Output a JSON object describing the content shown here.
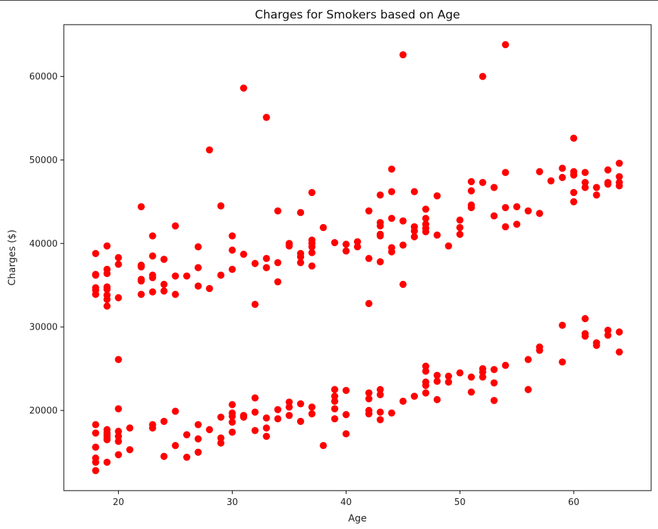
{
  "chart_data": {
    "type": "scatter",
    "title": "Charges for Smokers based on Age",
    "xlabel": "Age",
    "ylabel": "Charges ($)",
    "xlim": [
      15.2,
      66.8
    ],
    "ylim": [
      10400,
      66200
    ],
    "xticks": [
      20,
      30,
      40,
      50,
      60
    ],
    "yticks": [
      20000,
      30000,
      40000,
      50000,
      60000
    ],
    "grid": false,
    "marker_color": "#ff0000",
    "series": [
      {
        "points": [
          [
            18,
            38800
          ],
          [
            18,
            36300
          ],
          [
            18,
            36200
          ],
          [
            18,
            34700
          ],
          [
            18,
            34400
          ],
          [
            18,
            33900
          ],
          [
            19,
            39700
          ],
          [
            19,
            36900
          ],
          [
            19,
            36400
          ],
          [
            19,
            34800
          ],
          [
            19,
            34500
          ],
          [
            19,
            33800
          ],
          [
            19,
            33300
          ],
          [
            19,
            32500
          ],
          [
            20,
            38300
          ],
          [
            20,
            37500
          ],
          [
            20,
            33500
          ],
          [
            22,
            44400
          ],
          [
            22,
            37400
          ],
          [
            22,
            37200
          ],
          [
            22,
            35700
          ],
          [
            22,
            35500
          ],
          [
            22,
            33900
          ],
          [
            23,
            40900
          ],
          [
            23,
            38500
          ],
          [
            23,
            36200
          ],
          [
            23,
            35900
          ],
          [
            23,
            34200
          ],
          [
            24,
            38100
          ],
          [
            24,
            35100
          ],
          [
            24,
            34300
          ],
          [
            25,
            42100
          ],
          [
            25,
            36100
          ],
          [
            25,
            33900
          ],
          [
            26,
            36100
          ],
          [
            27,
            39600
          ],
          [
            27,
            37100
          ],
          [
            27,
            34900
          ],
          [
            28,
            51200
          ],
          [
            28,
            34600
          ],
          [
            29,
            44500
          ],
          [
            29,
            36200
          ],
          [
            30,
            40900
          ],
          [
            30,
            39200
          ],
          [
            30,
            36900
          ],
          [
            31,
            58600
          ],
          [
            31,
            38700
          ],
          [
            32,
            37600
          ],
          [
            32,
            32700
          ],
          [
            33,
            55100
          ],
          [
            33,
            38200
          ],
          [
            33,
            37100
          ],
          [
            34,
            43900
          ],
          [
            34,
            37700
          ],
          [
            34,
            35400
          ],
          [
            35,
            40000
          ],
          [
            35,
            39700
          ],
          [
            36,
            43700
          ],
          [
            36,
            38800
          ],
          [
            36,
            38400
          ],
          [
            36,
            37700
          ],
          [
            37,
            46100
          ],
          [
            37,
            40400
          ],
          [
            37,
            40000
          ],
          [
            37,
            39600
          ],
          [
            37,
            38900
          ],
          [
            37,
            37300
          ],
          [
            38,
            41900
          ],
          [
            39,
            40100
          ],
          [
            40,
            39900
          ],
          [
            40,
            39100
          ],
          [
            41,
            40200
          ],
          [
            41,
            39600
          ],
          [
            42,
            43900
          ],
          [
            42,
            38200
          ],
          [
            42,
            32800
          ],
          [
            43,
            45800
          ],
          [
            43,
            42500
          ],
          [
            43,
            42100
          ],
          [
            43,
            41100
          ],
          [
            43,
            40900
          ],
          [
            43,
            37800
          ],
          [
            44,
            48900
          ],
          [
            44,
            46200
          ],
          [
            44,
            43000
          ],
          [
            44,
            39500
          ],
          [
            44,
            39000
          ],
          [
            45,
            62600
          ],
          [
            45,
            42700
          ],
          [
            45,
            39800
          ],
          [
            45,
            35100
          ],
          [
            46,
            46200
          ],
          [
            46,
            42000
          ],
          [
            46,
            41500
          ],
          [
            46,
            40800
          ],
          [
            47,
            44100
          ],
          [
            47,
            43000
          ],
          [
            47,
            42300
          ],
          [
            47,
            41800
          ],
          [
            47,
            41400
          ],
          [
            48,
            45700
          ],
          [
            48,
            41000
          ],
          [
            49,
            39700
          ],
          [
            50,
            42800
          ],
          [
            50,
            41900
          ],
          [
            50,
            41100
          ],
          [
            51,
            47400
          ],
          [
            51,
            46300
          ],
          [
            51,
            44600
          ],
          [
            51,
            44300
          ],
          [
            52,
            60000
          ],
          [
            52,
            47300
          ],
          [
            53,
            46700
          ],
          [
            53,
            43300
          ],
          [
            54,
            63800
          ],
          [
            54,
            48500
          ],
          [
            54,
            44300
          ],
          [
            54,
            42000
          ],
          [
            55,
            44400
          ],
          [
            55,
            42300
          ],
          [
            56,
            43900
          ],
          [
            57,
            48600
          ],
          [
            57,
            43600
          ],
          [
            58,
            47500
          ],
          [
            59,
            49000
          ],
          [
            59,
            47900
          ],
          [
            60,
            52600
          ],
          [
            60,
            48600
          ],
          [
            60,
            48200
          ],
          [
            60,
            46100
          ],
          [
            60,
            45000
          ],
          [
            61,
            48500
          ],
          [
            61,
            47300
          ],
          [
            61,
            46700
          ],
          [
            62,
            46700
          ],
          [
            62,
            45800
          ],
          [
            63,
            48800
          ],
          [
            63,
            47300
          ],
          [
            63,
            47100
          ],
          [
            64,
            49600
          ],
          [
            64,
            48000
          ],
          [
            64,
            47300
          ],
          [
            64,
            46900
          ],
          [
            18,
            18300
          ],
          [
            18,
            17300
          ],
          [
            18,
            15600
          ],
          [
            18,
            14300
          ],
          [
            18,
            13800
          ],
          [
            18,
            12800
          ],
          [
            19,
            17700
          ],
          [
            19,
            17300
          ],
          [
            19,
            17000
          ],
          [
            19,
            16700
          ],
          [
            19,
            16500
          ],
          [
            19,
            13800
          ],
          [
            20,
            26100
          ],
          [
            20,
            20200
          ],
          [
            20,
            17500
          ],
          [
            20,
            16900
          ],
          [
            20,
            16300
          ],
          [
            20,
            14700
          ],
          [
            21,
            17900
          ],
          [
            21,
            15300
          ],
          [
            23,
            18300
          ],
          [
            23,
            17900
          ],
          [
            24,
            18700
          ],
          [
            24,
            14500
          ],
          [
            25,
            19900
          ],
          [
            25,
            15800
          ],
          [
            26,
            17100
          ],
          [
            26,
            14400
          ],
          [
            27,
            18300
          ],
          [
            27,
            16600
          ],
          [
            27,
            15000
          ],
          [
            28,
            17700
          ],
          [
            29,
            19200
          ],
          [
            29,
            16700
          ],
          [
            29,
            16100
          ],
          [
            30,
            20700
          ],
          [
            30,
            19700
          ],
          [
            30,
            19300
          ],
          [
            30,
            18600
          ],
          [
            30,
            17400
          ],
          [
            31,
            19400
          ],
          [
            31,
            19200
          ],
          [
            32,
            21500
          ],
          [
            32,
            19800
          ],
          [
            32,
            17600
          ],
          [
            33,
            19100
          ],
          [
            33,
            17900
          ],
          [
            33,
            16900
          ],
          [
            34,
            20100
          ],
          [
            34,
            19000
          ],
          [
            35,
            21000
          ],
          [
            35,
            20400
          ],
          [
            35,
            19400
          ],
          [
            36,
            20800
          ],
          [
            36,
            18700
          ],
          [
            37,
            20400
          ],
          [
            37,
            19600
          ],
          [
            38,
            15800
          ],
          [
            39,
            22500
          ],
          [
            39,
            21700
          ],
          [
            39,
            21100
          ],
          [
            39,
            20200
          ],
          [
            39,
            19000
          ],
          [
            40,
            22400
          ],
          [
            40,
            19500
          ],
          [
            40,
            17200
          ],
          [
            42,
            22100
          ],
          [
            42,
            21400
          ],
          [
            42,
            20000
          ],
          [
            42,
            19600
          ],
          [
            43,
            22500
          ],
          [
            43,
            21900
          ],
          [
            43,
            19800
          ],
          [
            43,
            18900
          ],
          [
            44,
            19700
          ],
          [
            45,
            21100
          ],
          [
            46,
            21700
          ],
          [
            47,
            25300
          ],
          [
            47,
            24700
          ],
          [
            47,
            23400
          ],
          [
            47,
            23000
          ],
          [
            47,
            22100
          ],
          [
            48,
            24200
          ],
          [
            48,
            23500
          ],
          [
            48,
            21300
          ],
          [
            49,
            24100
          ],
          [
            49,
            23400
          ],
          [
            50,
            24500
          ],
          [
            51,
            24000
          ],
          [
            51,
            22200
          ],
          [
            52,
            25000
          ],
          [
            52,
            24600
          ],
          [
            52,
            24000
          ],
          [
            53,
            24900
          ],
          [
            53,
            23300
          ],
          [
            53,
            21200
          ],
          [
            54,
            25400
          ],
          [
            56,
            26100
          ],
          [
            56,
            22500
          ],
          [
            57,
            27600
          ],
          [
            57,
            27200
          ],
          [
            59,
            30200
          ],
          [
            59,
            25800
          ],
          [
            61,
            31000
          ],
          [
            61,
            29200
          ],
          [
            61,
            28900
          ],
          [
            62,
            28100
          ],
          [
            62,
            27800
          ],
          [
            63,
            29600
          ],
          [
            63,
            29000
          ],
          [
            64,
            29400
          ],
          [
            64,
            27000
          ]
        ]
      }
    ]
  }
}
